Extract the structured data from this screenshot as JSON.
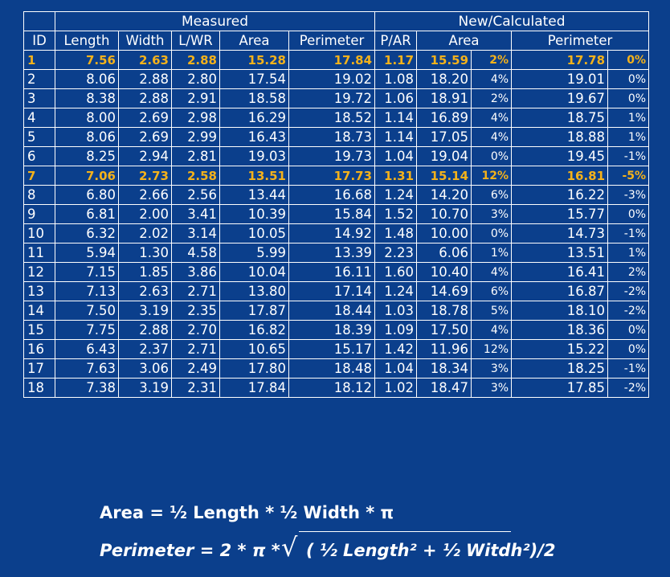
{
  "table": {
    "group_headers": {
      "id_blank": "",
      "measured": "Measured",
      "calculated": "New/Calculated"
    },
    "headers": [
      "ID",
      "Length",
      "Width",
      "L/WR",
      "Area",
      "Perimeter",
      "P/AR",
      "Area",
      "Perimeter"
    ],
    "highlight_rows": [
      0,
      6
    ],
    "rows": [
      [
        "1",
        "7.56",
        "2.63",
        "2.88",
        "15.28",
        "17.84",
        "1.17",
        "15.59",
        "2%",
        "17.78",
        "0%"
      ],
      [
        "2",
        "8.06",
        "2.88",
        "2.80",
        "17.54",
        "19.02",
        "1.08",
        "18.20",
        "4%",
        "19.01",
        "0%"
      ],
      [
        "3",
        "8.38",
        "2.88",
        "2.91",
        "18.58",
        "19.72",
        "1.06",
        "18.91",
        "2%",
        "19.67",
        "0%"
      ],
      [
        "4",
        "8.00",
        "2.69",
        "2.98",
        "16.29",
        "18.52",
        "1.14",
        "16.89",
        "4%",
        "18.75",
        "1%"
      ],
      [
        "5",
        "8.06",
        "2.69",
        "2.99",
        "16.43",
        "18.73",
        "1.14",
        "17.05",
        "4%",
        "18.88",
        "1%"
      ],
      [
        "6",
        "8.25",
        "2.94",
        "2.81",
        "19.03",
        "19.73",
        "1.04",
        "19.04",
        "0%",
        "19.45",
        "-1%"
      ],
      [
        "7",
        "7.06",
        "2.73",
        "2.58",
        "13.51",
        "17.73",
        "1.31",
        "15.14",
        "12%",
        "16.81",
        "-5%"
      ],
      [
        "8",
        "6.80",
        "2.66",
        "2.56",
        "13.44",
        "16.68",
        "1.24",
        "14.20",
        "6%",
        "16.22",
        "-3%"
      ],
      [
        "9",
        "6.81",
        "2.00",
        "3.41",
        "10.39",
        "15.84",
        "1.52",
        "10.70",
        "3%",
        "15.77",
        "0%"
      ],
      [
        "10",
        "6.32",
        "2.02",
        "3.14",
        "10.05",
        "14.92",
        "1.48",
        "10.00",
        "0%",
        "14.73",
        "-1%"
      ],
      [
        "11",
        "5.94",
        "1.30",
        "4.58",
        "5.99",
        "13.39",
        "2.23",
        "6.06",
        "1%",
        "13.51",
        "1%"
      ],
      [
        "12",
        "7.15",
        "1.85",
        "3.86",
        "10.04",
        "16.11",
        "1.60",
        "10.40",
        "4%",
        "16.41",
        "2%"
      ],
      [
        "13",
        "7.13",
        "2.63",
        "2.71",
        "13.80",
        "17.14",
        "1.24",
        "14.69",
        "6%",
        "16.87",
        "-2%"
      ],
      [
        "14",
        "7.50",
        "3.19",
        "2.35",
        "17.87",
        "18.44",
        "1.03",
        "18.78",
        "5%",
        "18.10",
        "-2%"
      ],
      [
        "15",
        "7.75",
        "2.88",
        "2.70",
        "16.82",
        "18.39",
        "1.09",
        "17.50",
        "4%",
        "18.36",
        "0%"
      ],
      [
        "16",
        "6.43",
        "2.37",
        "2.71",
        "10.65",
        "15.17",
        "1.42",
        "11.96",
        "12%",
        "15.22",
        "0%"
      ],
      [
        "17",
        "7.63",
        "3.06",
        "2.49",
        "17.80",
        "18.48",
        "1.04",
        "18.34",
        "3%",
        "18.25",
        "-1%"
      ],
      [
        "18",
        "7.38",
        "3.19",
        "2.31",
        "17.84",
        "18.12",
        "1.02",
        "18.47",
        "3%",
        "17.85",
        "-2%"
      ]
    ]
  },
  "formulas": {
    "area": "Area = ½ Length * ½ Width * π",
    "perimeter_prefix": "Perimeter = 2 * π * ",
    "radical": "√",
    "perimeter_radicand": "( ½ Length² + ½ Witdh²)/2"
  },
  "colors": {
    "background": "#0b3f8c",
    "highlight": "#f4b21b",
    "text": "#ffffff"
  }
}
